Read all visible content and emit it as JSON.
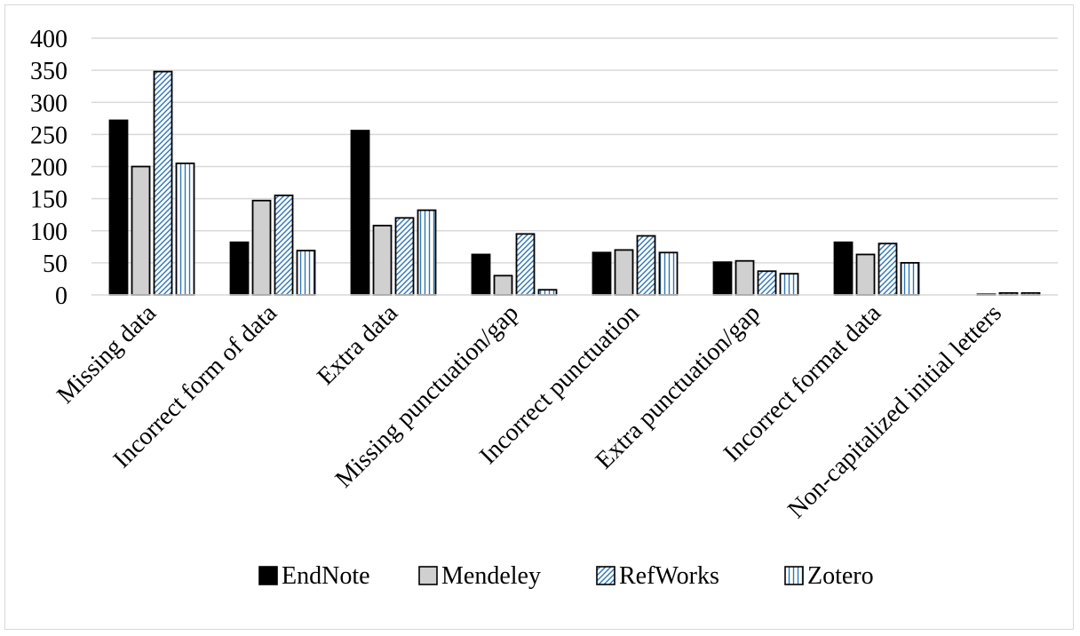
{
  "chart_data": {
    "type": "bar",
    "title": "",
    "xlabel": "",
    "ylabel": "",
    "ylim": [
      0,
      400
    ],
    "yticks": [
      0,
      50,
      100,
      150,
      200,
      250,
      300,
      350,
      400
    ],
    "grid": true,
    "legend_position": "bottom",
    "categories": [
      "Missing data",
      "Incorrect form of data",
      "Extra data",
      "Missing punctuation/gap",
      "Incorrect punctuation",
      "Extra punctuation/gap",
      "Incorrect format data",
      "Non-capitalized initial letters"
    ],
    "series": [
      {
        "name": "EndNote",
        "pattern": "solid-black",
        "values": [
          272,
          82,
          256,
          63,
          66,
          51,
          82,
          0
        ]
      },
      {
        "name": "Mendeley",
        "pattern": "solid-gray",
        "values": [
          200,
          147,
          108,
          30,
          70,
          53,
          63,
          1
        ]
      },
      {
        "name": "RefWorks",
        "pattern": "diagonal-blue",
        "values": [
          348,
          155,
          120,
          95,
          92,
          37,
          80,
          3
        ]
      },
      {
        "name": "Zotero",
        "pattern": "vertical-blue",
        "values": [
          205,
          69,
          132,
          8,
          66,
          33,
          50,
          3
        ]
      }
    ],
    "colors": {
      "EndNote": "#000000",
      "Mendeley": "#d0d0d0",
      "RefWorks": "#2e75b6",
      "Zotero": "#2e75b6",
      "grid": "#d9d9d9"
    }
  }
}
